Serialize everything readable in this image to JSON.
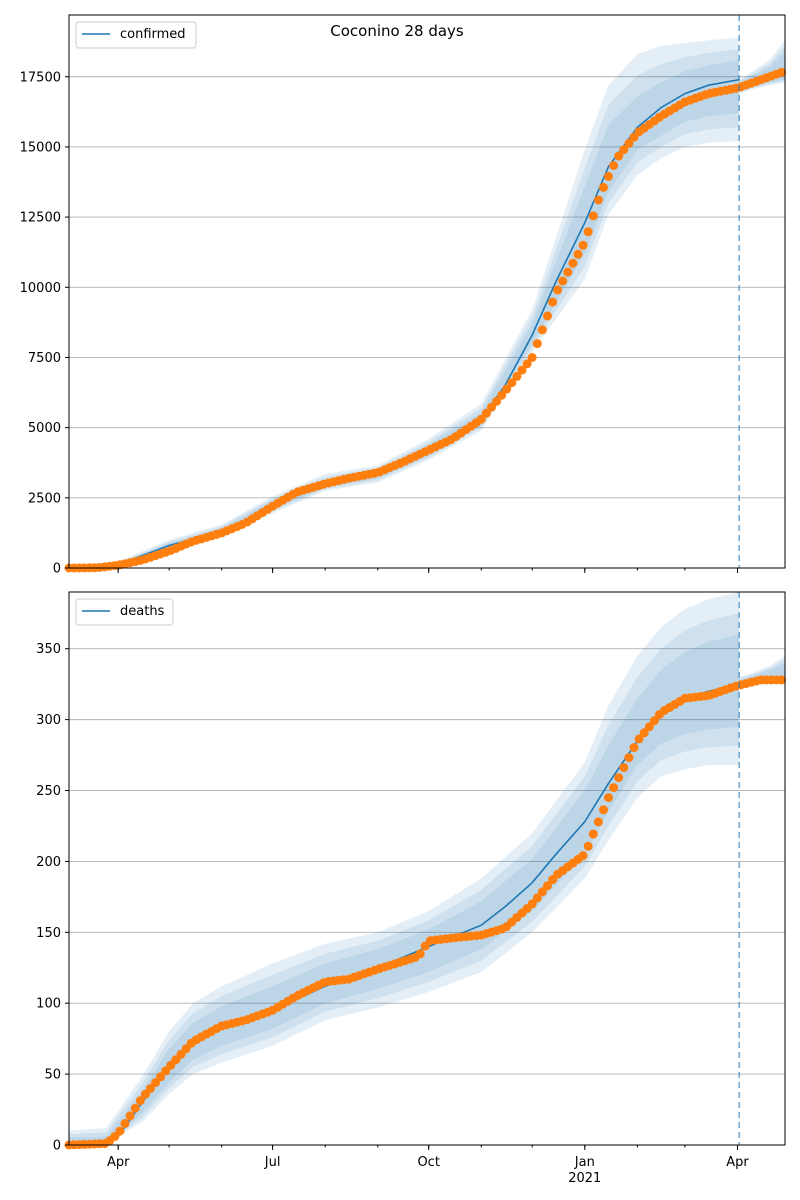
{
  "figure": {
    "title": "Coconino 28 days"
  },
  "x_axis": {
    "tick_labels": [
      "Apr",
      "Jul",
      "Oct",
      "Jan",
      "Apr"
    ],
    "year_label": "2021",
    "tick_dates": [
      "2020-04-01",
      "2020-07-01",
      "2020-10-01",
      "2021-01-01",
      "2021-04-01"
    ],
    "range": [
      "2020-03-03",
      "2021-04-29"
    ],
    "forecast_start": "2021-04-02"
  },
  "chart_data": [
    {
      "type": "line",
      "title": "Coconino 28 days",
      "legend": {
        "entries": [
          "confirmed"
        ],
        "placement": "upper-left"
      },
      "grid": "horizontal",
      "ylim": [
        0,
        19700
      ],
      "yticks": [
        0,
        2500,
        5000,
        7500,
        10000,
        12500,
        15000,
        17500
      ],
      "series": [
        {
          "name": "confirmed",
          "kind": "model-mean",
          "color": "#1f77b4",
          "x": [
            "2020-03-03",
            "2020-04-01",
            "2020-05-01",
            "2020-06-01",
            "2020-06-15",
            "2020-07-01",
            "2020-07-20",
            "2020-08-01",
            "2020-09-01",
            "2020-10-01",
            "2020-11-01",
            "2020-11-15",
            "2020-12-01",
            "2020-12-15",
            "2021-01-01",
            "2021-01-15",
            "2021-02-01",
            "2021-02-15",
            "2021-03-01",
            "2021-03-15",
            "2021-04-02"
          ],
          "values": [
            0,
            120,
            800,
            1300,
            1700,
            2250,
            2800,
            3000,
            3350,
            4200,
            5300,
            6500,
            8300,
            10200,
            12300,
            14300,
            15700,
            16400,
            16900,
            17200,
            17400
          ]
        },
        {
          "name": "observed",
          "kind": "observed",
          "color": "#ff7f0e",
          "x": [
            "2020-03-03",
            "2020-03-20",
            "2020-04-01",
            "2020-04-15",
            "2020-05-01",
            "2020-05-15",
            "2020-06-01",
            "2020-06-15",
            "2020-07-01",
            "2020-07-15",
            "2020-08-01",
            "2020-08-15",
            "2020-09-01",
            "2020-09-15",
            "2020-10-01",
            "2020-10-15",
            "2020-11-01",
            "2020-11-15",
            "2020-12-01",
            "2020-12-15",
            "2021-01-01",
            "2021-01-10",
            "2021-01-20",
            "2021-02-01",
            "2021-02-15",
            "2021-03-01",
            "2021-03-15",
            "2021-04-01",
            "2021-04-15",
            "2021-04-29"
          ],
          "values": [
            0,
            10,
            100,
            280,
            600,
            950,
            1250,
            1600,
            2200,
            2700,
            3000,
            3200,
            3400,
            3750,
            4200,
            4600,
            5300,
            6300,
            7500,
            9800,
            11600,
            13300,
            14600,
            15500,
            16100,
            16600,
            16900,
            17100,
            17400,
            17700
          ]
        }
      ],
      "bands": {
        "x": [
          "2020-03-03",
          "2020-04-01",
          "2020-05-01",
          "2020-06-01",
          "2020-07-01",
          "2020-08-01",
          "2020-09-01",
          "2020-10-01",
          "2020-11-01",
          "2020-12-01",
          "2021-01-01",
          "2021-01-15",
          "2021-02-01",
          "2021-02-15",
          "2021-03-01",
          "2021-03-15",
          "2021-04-02"
        ],
        "outer_lower": [
          0,
          60,
          650,
          1100,
          1950,
          2750,
          3050,
          3850,
          4900,
          7700,
          10300,
          12600,
          14000,
          14600,
          15000,
          15150,
          15200
        ],
        "outer_upper": [
          60,
          220,
          1000,
          1550,
          2550,
          3350,
          3650,
          4600,
          5850,
          9200,
          14900,
          17200,
          18300,
          18600,
          18700,
          18800,
          18900
        ],
        "inner_lower": [
          0,
          90,
          730,
          1220,
          2100,
          2880,
          3200,
          4000,
          5100,
          8000,
          11200,
          13400,
          14900,
          15400,
          15900,
          16100,
          16200
        ],
        "inner_upper": [
          30,
          160,
          880,
          1420,
          2400,
          3150,
          3500,
          4400,
          5550,
          8700,
          13600,
          15800,
          16800,
          17300,
          17700,
          17900,
          18100
        ]
      },
      "post_bands": {
        "x": [
          "2021-04-02",
          "2021-04-10",
          "2021-04-20",
          "2021-04-29"
        ],
        "outer_lower": [
          16900,
          17050,
          17200,
          17300
        ],
        "outer_upper": [
          17400,
          17700,
          18100,
          18800
        ],
        "inner_lower": [
          17000,
          17150,
          17300,
          17400
        ],
        "inner_upper": [
          17300,
          17550,
          17850,
          18400
        ]
      }
    },
    {
      "type": "line",
      "title": "",
      "legend": {
        "entries": [
          "deaths"
        ],
        "placement": "upper-left"
      },
      "grid": "horizontal",
      "ylim": [
        0,
        390
      ],
      "yticks": [
        0,
        50,
        100,
        150,
        200,
        250,
        300,
        350
      ],
      "series": [
        {
          "name": "deaths",
          "kind": "model-mean",
          "color": "#1f77b4",
          "x": [
            "2020-03-03",
            "2020-03-25",
            "2020-04-01",
            "2020-04-15",
            "2020-05-01",
            "2020-05-15",
            "2020-06-01",
            "2020-07-01",
            "2020-08-01",
            "2020-09-01",
            "2020-10-01",
            "2020-11-01",
            "2020-11-15",
            "2020-12-01",
            "2020-12-15",
            "2021-01-01",
            "2021-01-15",
            "2021-02-01",
            "2021-02-15",
            "2021-03-01",
            "2021-03-15",
            "2021-04-02"
          ],
          "values": [
            0,
            1,
            6,
            30,
            55,
            72,
            83,
            95,
            112,
            125,
            140,
            155,
            168,
            185,
            205,
            228,
            255,
            285,
            305,
            315,
            320,
            325
          ]
        },
        {
          "name": "observed",
          "kind": "observed",
          "color": "#ff7f0e",
          "x": [
            "2020-03-03",
            "2020-03-25",
            "2020-04-01",
            "2020-04-15",
            "2020-05-01",
            "2020-05-15",
            "2020-06-01",
            "2020-06-15",
            "2020-07-01",
            "2020-07-15",
            "2020-08-01",
            "2020-08-15",
            "2020-09-01",
            "2020-09-25",
            "2020-10-01",
            "2020-10-15",
            "2020-11-01",
            "2020-11-15",
            "2020-12-01",
            "2020-12-15",
            "2021-01-01",
            "2021-01-15",
            "2021-02-01",
            "2021-02-15",
            "2021-03-01",
            "2021-03-15",
            "2021-04-01",
            "2021-04-15",
            "2021-04-29"
          ],
          "values": [
            0,
            1,
            8,
            33,
            55,
            73,
            84,
            88,
            95,
            105,
            115,
            117,
            124,
            133,
            144,
            146,
            148,
            153,
            170,
            190,
            205,
            245,
            285,
            305,
            315,
            317,
            324,
            328,
            328
          ]
        }
      ],
      "bands": {
        "x": [
          "2020-03-03",
          "2020-03-25",
          "2020-04-15",
          "2020-05-01",
          "2020-05-15",
          "2020-06-01",
          "2020-07-01",
          "2020-08-01",
          "2020-09-01",
          "2020-10-01",
          "2020-11-01",
          "2020-12-01",
          "2021-01-01",
          "2021-01-15",
          "2021-02-01",
          "2021-02-15",
          "2021-03-01",
          "2021-03-15",
          "2021-04-02"
        ],
        "outer_lower": [
          0,
          1,
          16,
          36,
          50,
          58,
          70,
          88,
          97,
          108,
          122,
          150,
          188,
          215,
          245,
          260,
          265,
          268,
          268
        ],
        "outer_upper": [
          10,
          12,
          48,
          80,
          100,
          112,
          128,
          142,
          150,
          165,
          188,
          220,
          270,
          310,
          345,
          365,
          378,
          385,
          390
        ],
        "inner_lower": [
          0,
          1,
          22,
          44,
          60,
          70,
          82,
          100,
          110,
          122,
          138,
          165,
          205,
          235,
          268,
          283,
          290,
          293,
          295
        ],
        "inner_upper": [
          5,
          6,
          38,
          68,
          86,
          98,
          112,
          128,
          138,
          152,
          172,
          202,
          250,
          282,
          315,
          335,
          348,
          355,
          360
        ]
      },
      "post_bands": {
        "x": [
          "2021-04-02",
          "2021-04-10",
          "2021-04-20",
          "2021-04-29"
        ],
        "outer_lower": [
          325,
          327,
          329,
          330
        ],
        "outer_upper": [
          330,
          333,
          338,
          345
        ],
        "inner_lower": [
          326,
          328,
          330,
          331
        ],
        "inner_upper": [
          328,
          331,
          335,
          340
        ]
      }
    }
  ]
}
